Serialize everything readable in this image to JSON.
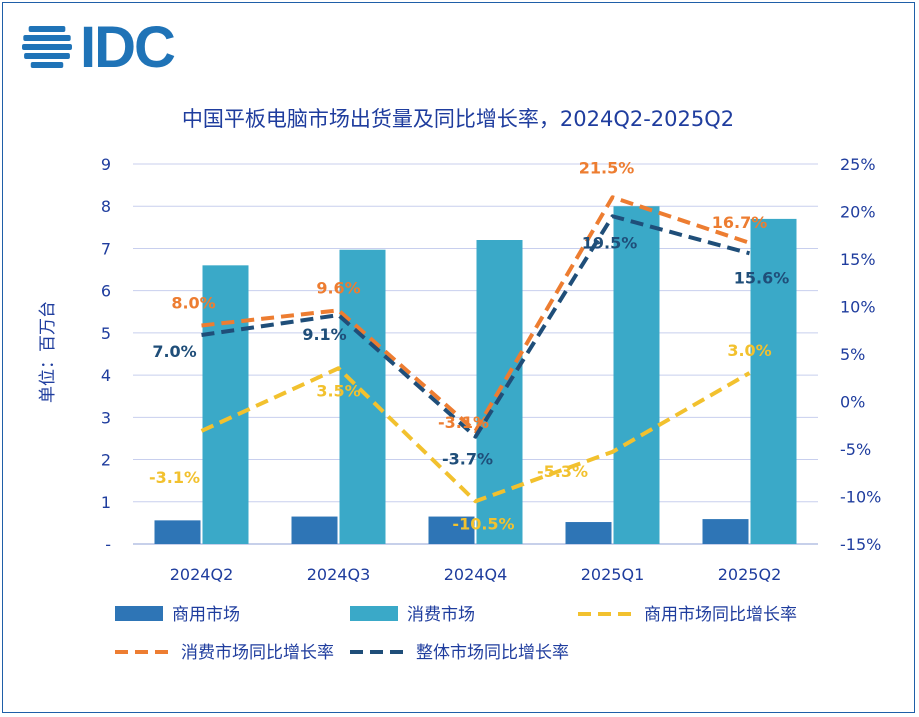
{
  "logo": {
    "text": "IDC",
    "color": "#1f73b7"
  },
  "chart_data": {
    "type": "bar",
    "title": "中国平板电脑市场出货量及同比增长率，2024Q2-2025Q2",
    "ylabel": "单位：百万台",
    "categories": [
      "2024Q2",
      "2024Q3",
      "2024Q4",
      "2025Q1",
      "2025Q2"
    ],
    "left_axis": {
      "ylim": [
        0,
        9
      ],
      "ticks": [
        "-",
        "1",
        "2",
        "3",
        "4",
        "5",
        "6",
        "7",
        "8",
        "9"
      ]
    },
    "right_axis": {
      "ylim": [
        -15,
        25
      ],
      "ticks": [
        "-15%",
        "-10%",
        "-5%",
        "0%",
        "5%",
        "10%",
        "15%",
        "20%",
        "25%"
      ]
    },
    "grid": true,
    "legend_position": "bottom",
    "bar_series": [
      {
        "name": "商用市场",
        "color": "#2e75b6",
        "values": [
          0.56,
          0.65,
          0.65,
          0.52,
          0.59
        ]
      },
      {
        "name": "消费市场",
        "color": "#3aa9c8",
        "values": [
          6.6,
          6.97,
          7.2,
          8.0,
          7.7
        ]
      }
    ],
    "line_series": [
      {
        "name": "商用市场同比增长率",
        "color": "#f2c12e",
        "values": [
          -3.1,
          3.5,
          -10.5,
          -5.3,
          3.0
        ],
        "labels": [
          "-3.1%",
          "3.5%",
          "-10.5%",
          "-5.3%",
          "3.0%"
        ]
      },
      {
        "name": "消费市场同比增长率",
        "color": "#ed7d31",
        "values": [
          8.0,
          9.6,
          -3.1,
          21.5,
          16.7
        ],
        "labels": [
          "8.0%",
          "9.6%",
          "-3.1%",
          "21.5%",
          "16.7%"
        ]
      },
      {
        "name": "整体市场同比增长率",
        "color": "#1f4e79",
        "values": [
          7.0,
          9.1,
          -3.7,
          19.5,
          15.6
        ],
        "labels": [
          "7.0%",
          "9.1%",
          "-3.7%",
          "19.5%",
          "15.6%"
        ]
      }
    ]
  }
}
